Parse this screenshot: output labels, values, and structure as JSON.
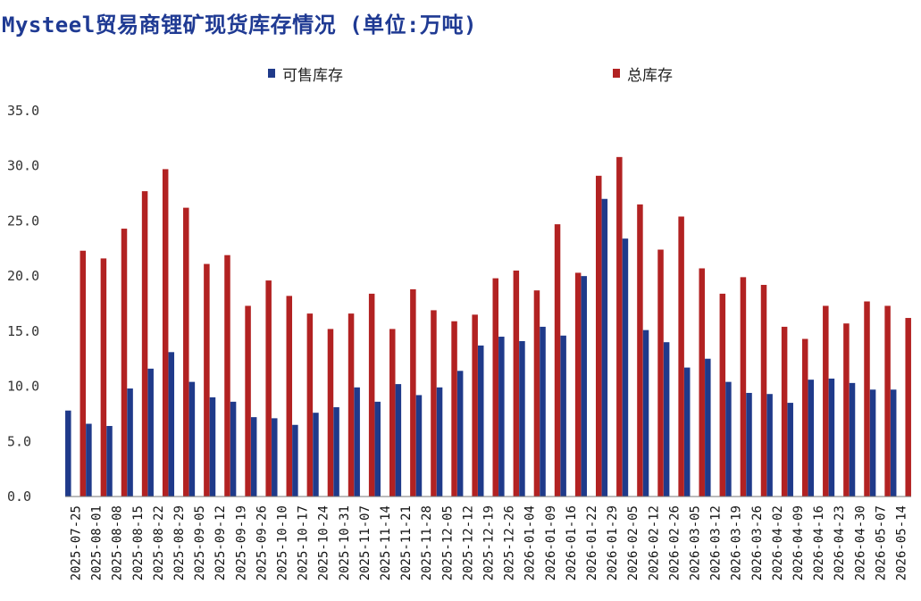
{
  "title": "Mysteel贸易商锂矿现货库存情况 (单位:万吨)",
  "colors": {
    "available": "#1f3a8a",
    "total": "#b22222",
    "title": "#1f3a93"
  },
  "chart_data": {
    "type": "bar",
    "title": "Mysteel贸易商锂矿现货库存情况 (单位:万吨)",
    "legend_position": "top",
    "grid": false,
    "ylim": [
      0,
      35
    ],
    "y_ticks": [
      "0.0",
      "5.0",
      "10.0",
      "15.0",
      "20.0",
      "25.0",
      "30.0",
      "35.0"
    ],
    "categories": [
      "2025-07-25",
      "2025-08-01",
      "2025-08-08",
      "2025-08-15",
      "2025-08-22",
      "2025-08-29",
      "2025-09-05",
      "2025-09-12",
      "2025-09-19",
      "2025-09-26",
      "2025-10-10",
      "2025-10-17",
      "2025-10-24",
      "2025-10-31",
      "2025-11-07",
      "2025-11-14",
      "2025-11-21",
      "2025-11-28",
      "2025-12-05",
      "2025-12-12",
      "2025-12-19",
      "2025-12-26",
      "2026-01-04",
      "2026-01-09",
      "2026-01-16",
      "2026-01-22",
      "2026-01-29",
      "2026-02-05",
      "2026-02-12",
      "2026-02-26",
      "2026-03-05",
      "2026-03-12",
      "2026-03-19",
      "2026-03-26",
      "2026-04-02",
      "2026-04-09",
      "2026-04-16",
      "2026-04-23",
      "2026-04-30",
      "2026-05-07",
      "2026-05-14"
    ],
    "series": [
      {
        "name": "可售库存",
        "values": [
          7.8,
          6.6,
          6.4,
          9.8,
          11.6,
          13.1,
          10.4,
          9.0,
          8.6,
          7.2,
          7.1,
          6.5,
          7.6,
          8.1,
          9.9,
          8.6,
          10.2,
          9.2,
          9.9,
          11.4,
          13.7,
          14.5,
          14.1,
          15.4,
          14.6,
          20.0,
          27.0,
          23.4,
          15.1,
          14.0,
          11.7,
          12.5,
          10.4,
          9.4,
          9.3,
          8.5,
          10.6,
          10.7,
          10.3,
          9.7,
          9.7
        ]
      },
      {
        "name": "总库存",
        "values": [
          22.3,
          21.6,
          24.3,
          27.7,
          29.7,
          26.2,
          21.1,
          21.9,
          17.3,
          19.6,
          18.2,
          16.6,
          15.2,
          16.6,
          18.4,
          15.2,
          18.8,
          16.9,
          15.9,
          16.5,
          19.8,
          20.5,
          18.7,
          24.7,
          20.3,
          29.1,
          30.8,
          26.5,
          22.4,
          25.4,
          20.7,
          18.4,
          19.9,
          19.2,
          15.4,
          14.3,
          17.3,
          15.7,
          17.7,
          17.3,
          16.2
        ]
      }
    ]
  }
}
